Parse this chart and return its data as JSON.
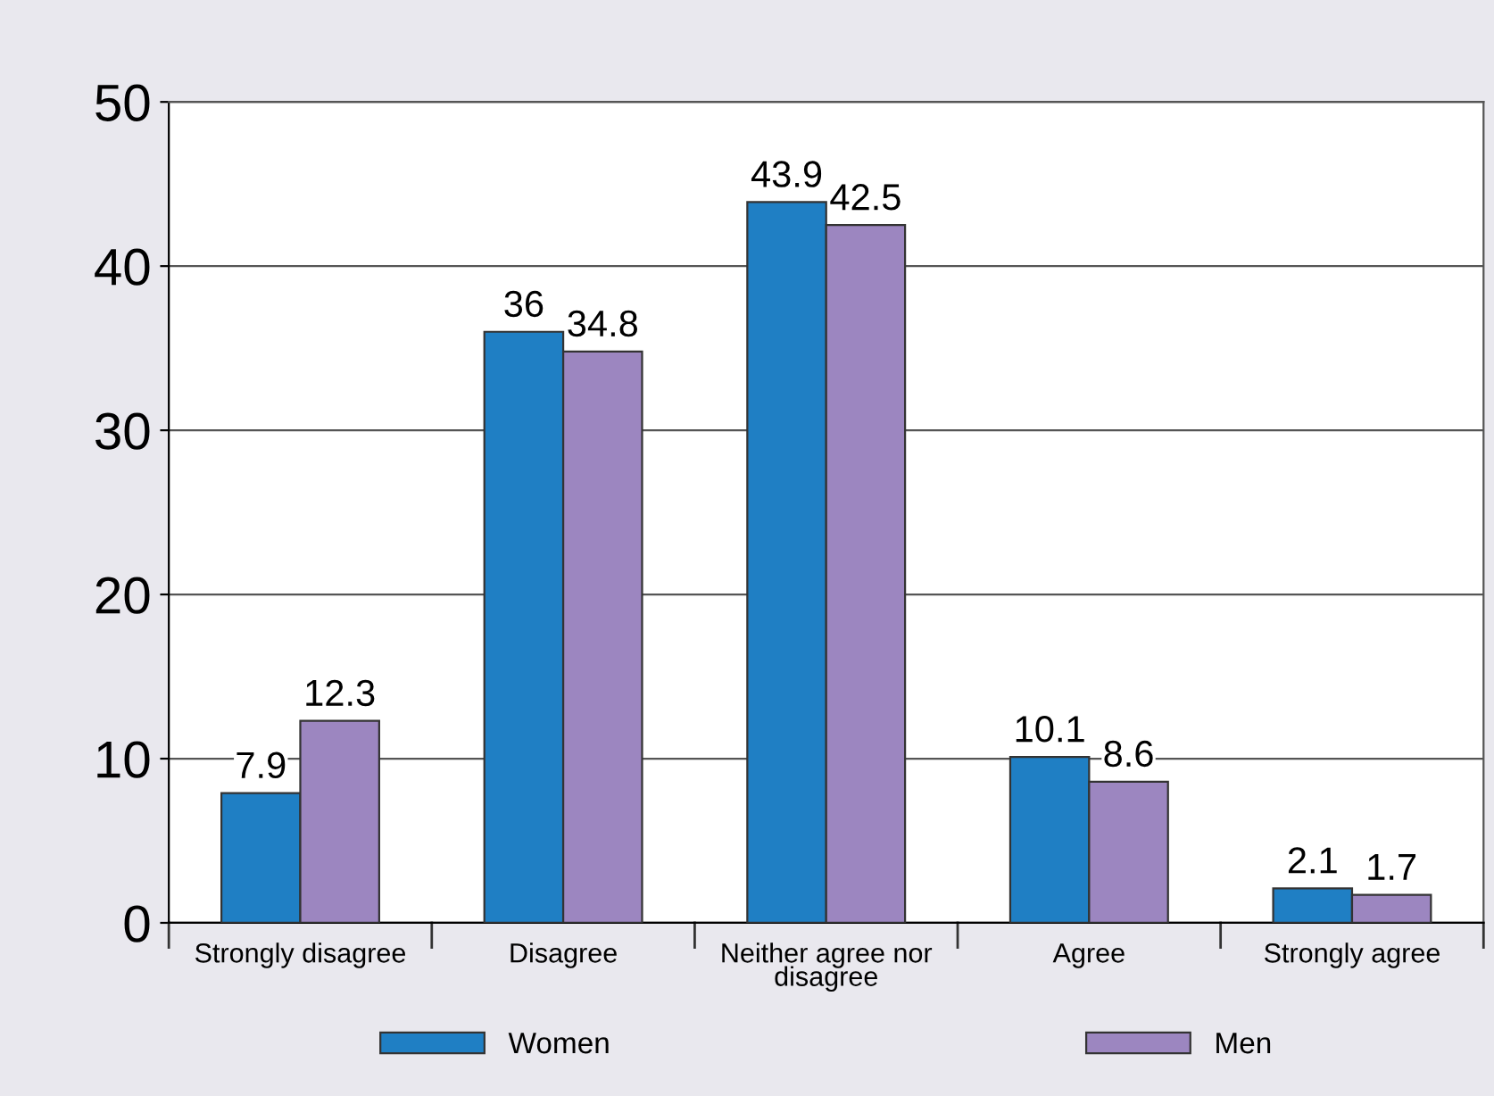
{
  "chart_data": {
    "type": "bar",
    "categories": [
      "Strongly disagree",
      "Disagree",
      "Neither agree nor\ndisagree",
      "Agree",
      "Strongly agree"
    ],
    "series": [
      {
        "name": "Women",
        "color": "#1f7fc4",
        "values": [
          7.9,
          36,
          43.9,
          10.1,
          2.1
        ]
      },
      {
        "name": "Men",
        "color": "#9c86c0",
        "values": [
          12.3,
          34.8,
          42.5,
          8.6,
          1.7
        ]
      }
    ],
    "ylim": [
      0,
      50
    ],
    "yticks": [
      0,
      10,
      20,
      30,
      40,
      50
    ],
    "grid": "y",
    "legend": "bottom",
    "data_labels": true
  }
}
